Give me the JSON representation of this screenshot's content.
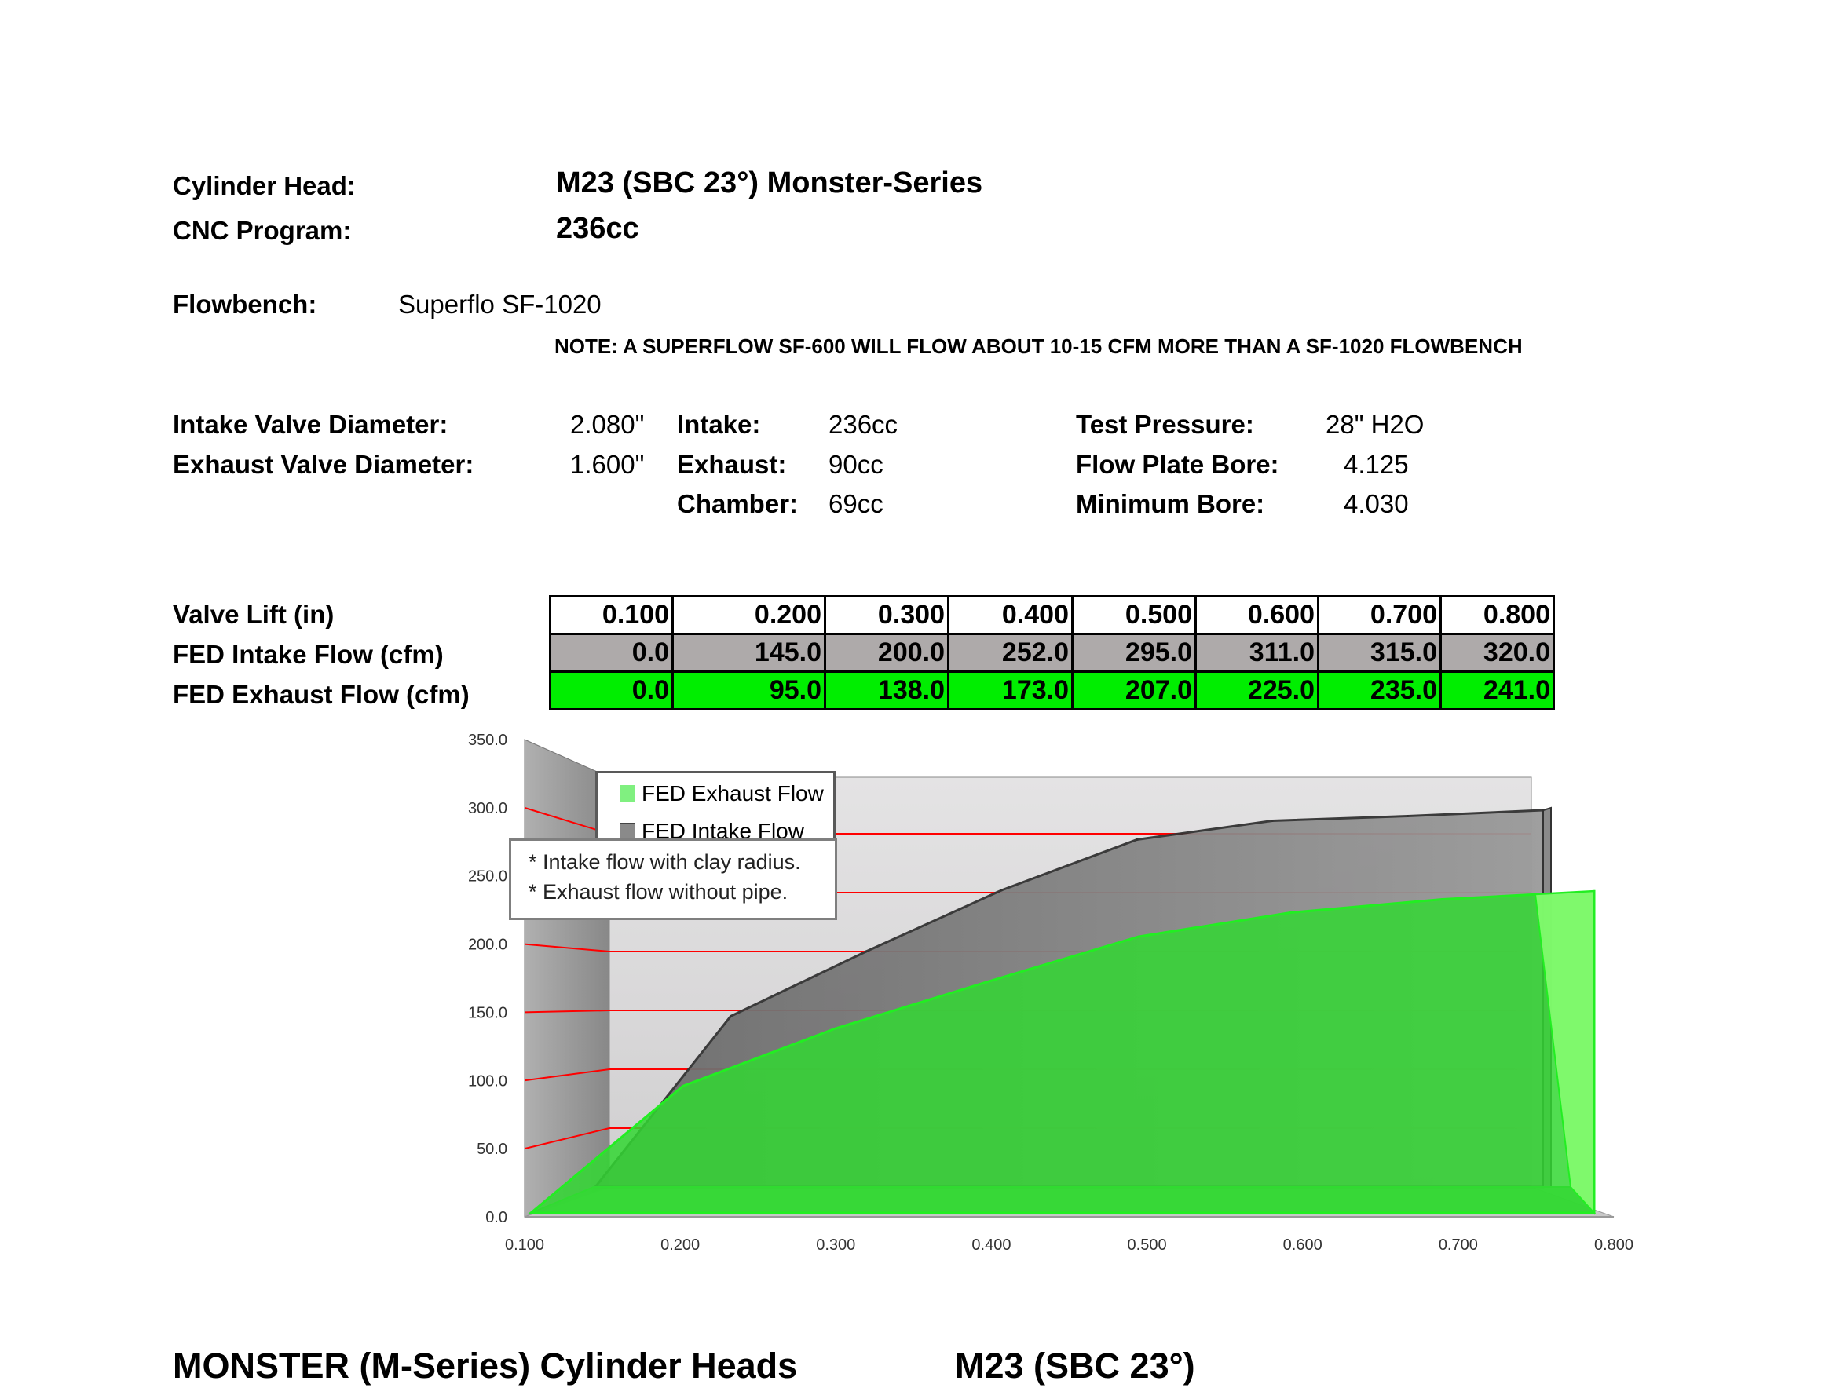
{
  "header": {
    "cylinder_head_label": "Cylinder Head:",
    "cylinder_head_value": "M23 (SBC 23°) Monster-Series",
    "cnc_program_label": "CNC Program:",
    "cnc_program_value": "236cc",
    "flowbench_label": "Flowbench:",
    "flowbench_value": "Superflo SF-1020",
    "note": "NOTE: A SUPERFLOW SF-600 WILL FLOW ABOUT 10-15 CFM MORE THAN A SF-1020 FLOWBENCH"
  },
  "specs": {
    "intake_valve_label": "Intake Valve Diameter:",
    "intake_valve_value": "2.080\"",
    "exhaust_valve_label": "Exhaust Valve Diameter:",
    "exhaust_valve_value": "1.600\"",
    "intake_label": "Intake:",
    "intake_value": "236cc",
    "exhaust_label": "Exhaust:",
    "exhaust_value": "90cc",
    "chamber_label": "Chamber:",
    "chamber_value": "69cc",
    "test_pressure_label": "Test Pressure:",
    "test_pressure_value": "28\" H2O",
    "flow_plate_label": "Flow Plate Bore:",
    "flow_plate_value": "4.125",
    "min_bore_label": "Minimum Bore:",
    "min_bore_value": "4.030"
  },
  "table": {
    "row_labels": [
      "Valve Lift (in)",
      "FED Intake Flow (cfm)",
      "FED Exhaust Flow (cfm)"
    ],
    "lift": [
      "0.100",
      "0.200",
      "0.300",
      "0.400",
      "0.500",
      "0.600",
      "0.700",
      "0.800"
    ],
    "intake": [
      "0.0",
      "145.0",
      "200.0",
      "252.0",
      "295.0",
      "311.0",
      "315.0",
      "320.0"
    ],
    "exhaust": [
      "0.0",
      "95.0",
      "138.0",
      "173.0",
      "207.0",
      "225.0",
      "235.0",
      "241.0"
    ]
  },
  "chart_data": {
    "type": "area",
    "style": "3d",
    "categories": [
      "0.100",
      "0.200",
      "0.300",
      "0.400",
      "0.500",
      "0.600",
      "0.700",
      "0.800"
    ],
    "series": [
      {
        "name": "FED Exhaust Flow",
        "values": [
          0,
          95,
          138,
          173,
          207,
          225,
          235,
          241
        ],
        "color": "#33dd33"
      },
      {
        "name": "FED Intake Flow",
        "values": [
          0,
          145,
          200,
          252,
          295,
          311,
          315,
          320
        ],
        "color": "#808080"
      }
    ],
    "ylim": [
      0,
      350
    ],
    "yticks": [
      "0.0",
      "50.0",
      "100.0",
      "150.0",
      "200.0",
      "250.0",
      "300.0",
      "350.0"
    ],
    "grid": true,
    "gridline_color": "#ff0000",
    "legend_position": "top-left",
    "annotations": [
      "* Intake flow with clay radius.",
      "* Exhaust flow without pipe."
    ]
  },
  "footer": {
    "left": "MONSTER (M-Series) Cylinder Heads",
    "right": "M23 (SBC 23°)"
  }
}
